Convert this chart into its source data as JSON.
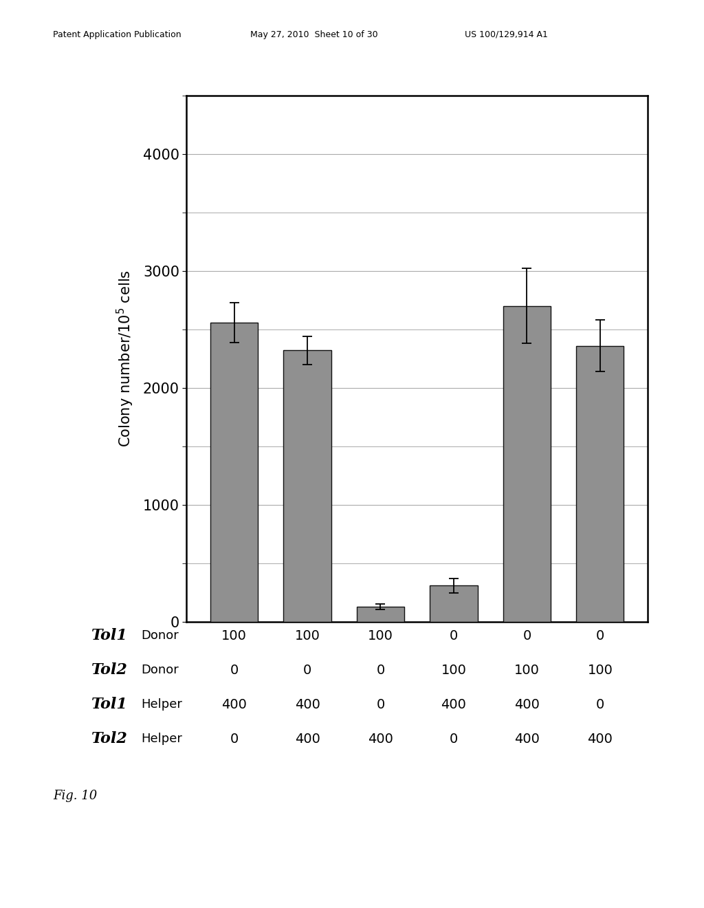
{
  "bar_values": [
    2560,
    2320,
    130,
    310,
    2700,
    2360
  ],
  "error_bars": [
    170,
    120,
    25,
    60,
    320,
    220
  ],
  "bar_color": "#909090",
  "bar_edge_color": "#111111",
  "x_positions": [
    1,
    2,
    3,
    4,
    5,
    6
  ],
  "bar_width": 0.65,
  "ylim": [
    0,
    4500
  ],
  "yticks": [
    0,
    1000,
    2000,
    3000,
    4000
  ],
  "ylabel": "Colony number/10$^5$ cells",
  "ylabel_fontsize": 15,
  "tick_fontsize": 15,
  "table_rows": [
    {
      "label_italic": "Tol1",
      "label_normal": "Donor",
      "values": [
        "100",
        "100",
        "100",
        "0",
        "0",
        "0"
      ]
    },
    {
      "label_italic": "Tol2",
      "label_normal": "Donor",
      "values": [
        "0",
        "0",
        "0",
        "100",
        "100",
        "100"
      ]
    },
    {
      "label_italic": "Tol1",
      "label_normal": "Helper",
      "values": [
        "400",
        "400",
        "0",
        "400",
        "400",
        "0"
      ]
    },
    {
      "label_italic": "Tol2",
      "label_normal": "Helper",
      "values": [
        "0",
        "400",
        "400",
        "0",
        "400",
        "400"
      ]
    }
  ],
  "table_fontsize": 14,
  "fig_caption": "Fig. 10",
  "background_color": "#ffffff",
  "grid_color": "#aaaaaa",
  "grid_linewidth": 0.8,
  "spine_linewidth": 1.8
}
